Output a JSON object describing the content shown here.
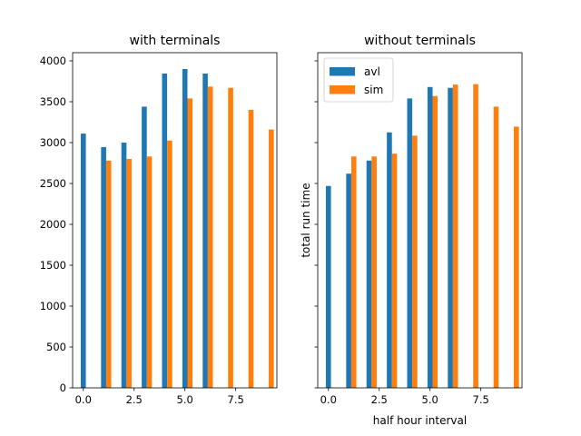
{
  "chart_data": [
    {
      "type": "bar",
      "title": "with terminals",
      "xlabel": "",
      "ylabel": "",
      "xlim": [
        -0.525,
        9.525
      ],
      "ylim": [
        0,
        4100
      ],
      "xticks": [
        0,
        2.5,
        5,
        7.5
      ],
      "xtick_labels": [
        "0.0",
        "2.5",
        "5.0",
        "7.5"
      ],
      "yticks": [
        0,
        500,
        1000,
        1500,
        2000,
        2500,
        3000,
        3500,
        4000
      ],
      "ytick_labels": [
        "0",
        "500",
        "1000",
        "1500",
        "2000",
        "2500",
        "3000",
        "3500",
        "4000"
      ],
      "bar_width": 0.25,
      "series": [
        {
          "name": "avl",
          "color": "#1f77b4",
          "offset": 0,
          "x": [
            0,
            1,
            2,
            3,
            4,
            5,
            6
          ],
          "values": [
            3110,
            2945,
            3000,
            3440,
            3845,
            3900,
            3845
          ]
        },
        {
          "name": "sim",
          "color": "#ff7f0e",
          "offset": 0.25,
          "x": [
            1,
            2,
            3,
            4,
            5,
            6,
            7,
            8,
            9
          ],
          "values": [
            2780,
            2800,
            2830,
            3025,
            3540,
            3685,
            3670,
            3400,
            3160
          ]
        }
      ]
    },
    {
      "type": "bar",
      "title": "without terminals",
      "xlabel": "half hour interval",
      "ylabel": "total run time",
      "xlim": [
        -0.525,
        9.525
      ],
      "ylim": [
        0,
        4100
      ],
      "xticks": [
        0,
        2.5,
        5,
        7.5
      ],
      "xtick_labels": [
        "0.0",
        "2.5",
        "5.0",
        "7.5"
      ],
      "yticks": [
        0,
        500,
        1000,
        1500,
        2000,
        2500,
        3000,
        3500,
        4000
      ],
      "bar_width": 0.25,
      "legend": {
        "position": "top-left",
        "entries": [
          "avl",
          "sim"
        ]
      },
      "series": [
        {
          "name": "avl",
          "color": "#1f77b4",
          "offset": 0,
          "x": [
            0,
            1,
            2,
            3,
            4,
            5,
            6
          ],
          "values": [
            2470,
            2620,
            2780,
            3125,
            3540,
            3680,
            3670
          ]
        },
        {
          "name": "sim",
          "color": "#ff7f0e",
          "offset": 0.25,
          "x": [
            1,
            2,
            3,
            4,
            5,
            6,
            7,
            8,
            9
          ],
          "values": [
            2830,
            2830,
            2865,
            3085,
            3570,
            3710,
            3715,
            3440,
            3195
          ]
        }
      ]
    }
  ]
}
